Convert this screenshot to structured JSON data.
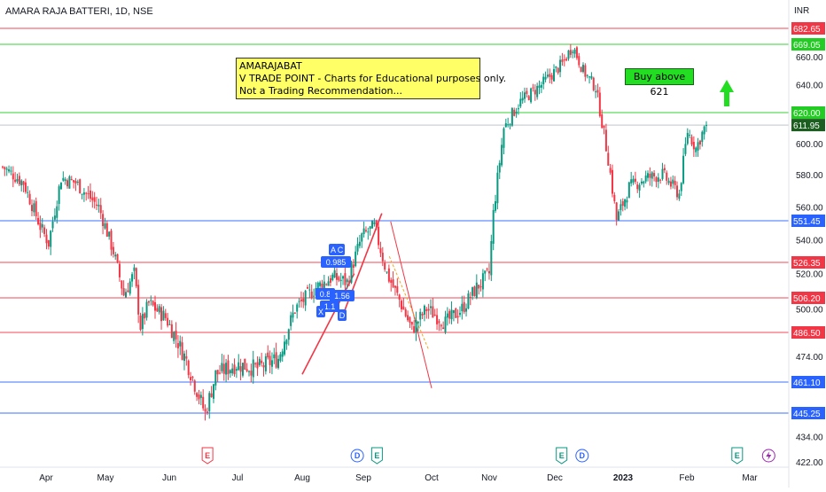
{
  "header": {
    "symbol_title": "AMARA RAJA BATTERI, 1D, NSE",
    "currency": "INR"
  },
  "annotations": {
    "note_lines": [
      "AMARAJABAT",
      "V TRADE POINT - Charts for Educational purposes only.",
      "Not a Trading Recommendation..."
    ],
    "buy_label": "Buy above 621",
    "pattern_labels": [
      "A",
      "C",
      "0.985",
      "0.8",
      "B",
      "1.56",
      "1.1",
      "X",
      "D"
    ]
  },
  "chart_data": {
    "type": "candlestick",
    "title": "AMARA RAJA BATTERI, 1D, NSE",
    "y_axis": {
      "unit": "INR",
      "range": [
        422,
        695
      ],
      "ticks": [
        "422.00",
        "434.00",
        "474.00",
        "500.00",
        "520.00",
        "540.00",
        "560.00",
        "580.00",
        "600.00",
        "620.00",
        "640.00",
        "660.00"
      ]
    },
    "x_axis": {
      "labels": [
        "Apr",
        "May",
        "Jun",
        "Jul",
        "Aug",
        "Sep",
        "Oct",
        "Nov",
        "Dec",
        "2023",
        "Feb",
        "Mar"
      ]
    },
    "horizontal_levels": [
      {
        "value": 682.65,
        "label": "682.65",
        "color": "#f23645"
      },
      {
        "value": 669.05,
        "label": "669.05",
        "color": "#22cc22"
      },
      {
        "value": 620.0,
        "label": "620.00",
        "color": "#22cc22"
      },
      {
        "value": 551.45,
        "label": "551.45",
        "color": "#2962ff"
      },
      {
        "value": 526.35,
        "label": "526.35",
        "color": "#f23645"
      },
      {
        "value": 506.2,
        "label": "506.20",
        "color": "#f23645"
      },
      {
        "value": 486.5,
        "label": "486.50",
        "color": "#f23645"
      },
      {
        "value": 461.1,
        "label": "461.10",
        "color": "#2962ff"
      },
      {
        "value": 445.25,
        "label": "445.25",
        "color": "#2962ff"
      }
    ],
    "last_price": {
      "value": 611.95,
      "label": "611.95"
    },
    "path_waypoints": [
      {
        "t": 0,
        "v": 585
      },
      {
        "t": 10,
        "v": 575
      },
      {
        "t": 18,
        "v": 548
      },
      {
        "t": 22,
        "v": 538
      },
      {
        "t": 28,
        "v": 578
      },
      {
        "t": 35,
        "v": 575
      },
      {
        "t": 46,
        "v": 560
      },
      {
        "t": 53,
        "v": 533
      },
      {
        "t": 58,
        "v": 508
      },
      {
        "t": 63,
        "v": 520
      },
      {
        "t": 66,
        "v": 490
      },
      {
        "t": 70,
        "v": 503
      },
      {
        "t": 78,
        "v": 495
      },
      {
        "t": 88,
        "v": 472
      },
      {
        "t": 97,
        "v": 445
      },
      {
        "t": 102,
        "v": 465
      },
      {
        "t": 112,
        "v": 470
      },
      {
        "t": 122,
        "v": 468
      },
      {
        "t": 132,
        "v": 473
      },
      {
        "t": 140,
        "v": 500
      },
      {
        "t": 150,
        "v": 512
      },
      {
        "t": 158,
        "v": 518
      },
      {
        "t": 165,
        "v": 515
      },
      {
        "t": 172,
        "v": 542
      },
      {
        "t": 178,
        "v": 548
      },
      {
        "t": 184,
        "v": 520
      },
      {
        "t": 190,
        "v": 505
      },
      {
        "t": 196,
        "v": 488
      },
      {
        "t": 203,
        "v": 500
      },
      {
        "t": 212,
        "v": 492
      },
      {
        "t": 220,
        "v": 500
      },
      {
        "t": 227,
        "v": 512
      },
      {
        "t": 233,
        "v": 520
      },
      {
        "t": 235,
        "v": 556
      },
      {
        "t": 240,
        "v": 610
      },
      {
        "t": 248,
        "v": 628
      },
      {
        "t": 258,
        "v": 640
      },
      {
        "t": 268,
        "v": 655
      },
      {
        "t": 273,
        "v": 668
      },
      {
        "t": 278,
        "v": 650
      },
      {
        "t": 284,
        "v": 638
      },
      {
        "t": 290,
        "v": 590
      },
      {
        "t": 294,
        "v": 552
      },
      {
        "t": 300,
        "v": 572
      },
      {
        "t": 308,
        "v": 578
      },
      {
        "t": 316,
        "v": 580
      },
      {
        "t": 324,
        "v": 568
      },
      {
        "t": 328,
        "v": 608
      },
      {
        "t": 332,
        "v": 597
      },
      {
        "t": 337,
        "v": 613
      }
    ],
    "event_markers": [
      {
        "type": "E",
        "month_pos": 2.56
      },
      {
        "type": "D",
        "month_pos": 4.9
      },
      {
        "type": "E",
        "month_pos": 5.2
      },
      {
        "type": "E",
        "month_pos": 8.1
      },
      {
        "type": "D",
        "month_pos": 8.4
      },
      {
        "type": "E",
        "month_pos": 10.8
      },
      {
        "type": "S",
        "month_pos": 11.3
      }
    ]
  },
  "colors": {
    "up": "#089981",
    "down": "#f23645",
    "axis_text": "#131722",
    "grid": "#f0f3fa",
    "pattern_label": "#2962ff",
    "arrow": "#22dd22"
  }
}
